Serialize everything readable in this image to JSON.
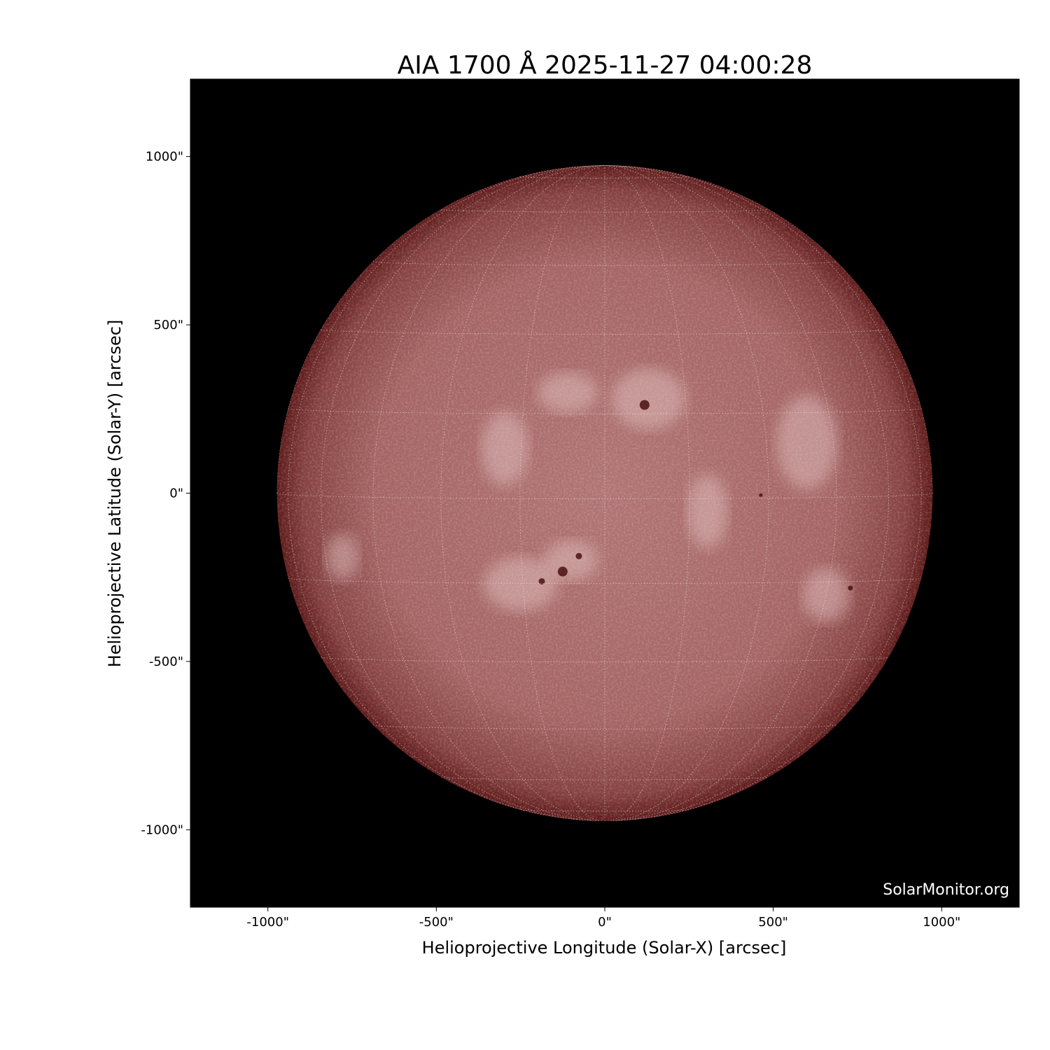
{
  "chart_data": {
    "type": "image",
    "title": "AIA 1700 Å 2025-11-27 04:00:28",
    "xlabel": "Helioprojective Longitude (Solar-X) [arcsec]",
    "ylabel": "Helioprojective Latitude (Solar-Y) [arcsec]",
    "xlim": [
      -1230,
      1230
    ],
    "ylim": [
      -1230,
      1230
    ],
    "x_ticks": [
      {
        "value": -1000,
        "label": "-1000\""
      },
      {
        "value": -500,
        "label": "-500\""
      },
      {
        "value": 0,
        "label": "0\""
      },
      {
        "value": 500,
        "label": "500\""
      },
      {
        "value": 1000,
        "label": "1000\""
      }
    ],
    "y_ticks": [
      {
        "value": 1000,
        "label": "1000\""
      },
      {
        "value": 500,
        "label": "500\""
      },
      {
        "value": 0,
        "label": "0\""
      },
      {
        "value": -500,
        "label": "-500\""
      },
      {
        "value": -1000,
        "label": "-1000\""
      }
    ],
    "solar_radius_arcsec": 973,
    "grid": "heliographic, 15° spacing, dotted white",
    "colormap": "sdoaia1700",
    "colors": {
      "background": "#000000",
      "disk_center": "#b07474",
      "disk_limb": "#5e1a1a",
      "plage": "#e8caca",
      "spot": "#4a1010"
    },
    "sunspots": [
      {
        "x": 118,
        "y": 262,
        "size": 14
      },
      {
        "x": -125,
        "y": -233,
        "size": 14
      },
      {
        "x": -77,
        "y": -187,
        "size": 9
      },
      {
        "x": -187,
        "y": -262,
        "size": 9
      },
      {
        "x": 729,
        "y": -282,
        "size": 7
      },
      {
        "x": 463,
        "y": -6,
        "size": 5
      }
    ],
    "plage_regions": [
      {
        "x": -250,
        "y": -270,
        "rx": 110,
        "ry": 80
      },
      {
        "x": -100,
        "y": -200,
        "rx": 80,
        "ry": 60
      },
      {
        "x": -297,
        "y": 133,
        "rx": 70,
        "ry": 110
      },
      {
        "x": -110,
        "y": 299,
        "rx": 90,
        "ry": 60
      },
      {
        "x": 130,
        "y": 280,
        "rx": 110,
        "ry": 90
      },
      {
        "x": 658,
        "y": -303,
        "rx": 70,
        "ry": 80
      },
      {
        "x": 305,
        "y": -54,
        "rx": 60,
        "ry": 110
      },
      {
        "x": -780,
        "y": -190,
        "rx": 50,
        "ry": 70
      },
      {
        "x": 600,
        "y": 150,
        "rx": 90,
        "ry": 140
      }
    ],
    "watermark": "SolarMonitor.org"
  }
}
